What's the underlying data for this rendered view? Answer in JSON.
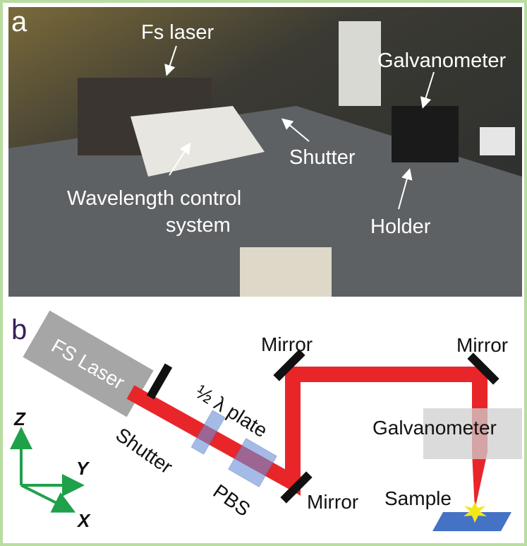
{
  "panel_a": {
    "label": "a",
    "labels": {
      "fs_laser": "Fs laser",
      "galvanometer": "Galvanometer",
      "shutter": "Shutter",
      "wavelength_control": [
        "Wavelength control",
        "system"
      ],
      "holder": "Holder"
    }
  },
  "panel_b": {
    "label": "b",
    "fs_laser": "FS Laser",
    "half_wave_plate": "½ λ plate",
    "mirrors": [
      "Mirror",
      "Mirror",
      "Mirror"
    ],
    "galvanometer": "Galvanometer",
    "shutter": "Shutter",
    "pbs": "PBS",
    "sample": "Sample",
    "axes": {
      "z": "Z",
      "y": "Y",
      "x": "X"
    }
  }
}
